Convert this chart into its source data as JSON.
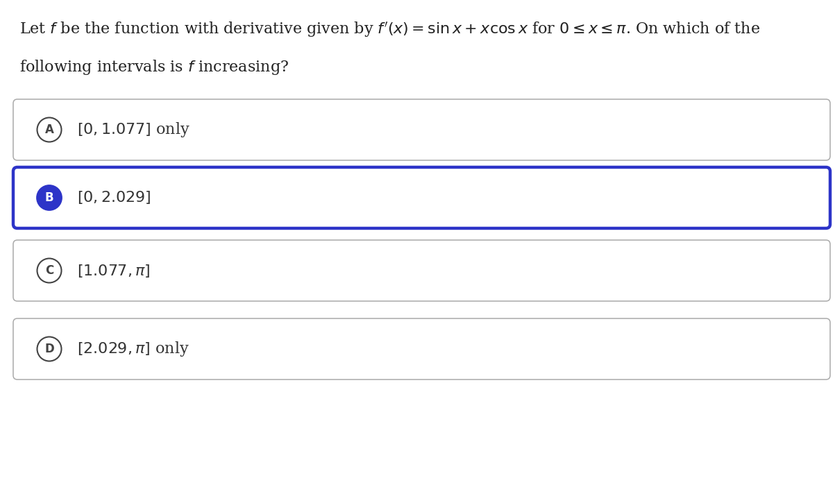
{
  "background_color": "#ffffff",
  "question_line1": "Let $f$ be the function with derivative given by $f'(x) = \\sin x + x\\cos x$ for $0 \\leq x \\leq \\pi$. On which of the",
  "question_line2": "following intervals is $f$ increasing?",
  "options": [
    {
      "letter": "A",
      "text": "$[0, 1.077]$ only",
      "selected": false
    },
    {
      "letter": "B",
      "text": "$[0, 2.029]$",
      "selected": true
    },
    {
      "letter": "C",
      "text": "$[1.077, \\pi]$",
      "selected": false
    },
    {
      "letter": "D",
      "text": "$[2.029, \\pi]$ only",
      "selected": false
    }
  ],
  "selected_color": "#2d34c8",
  "unselected_circle_color": "#444444",
  "selected_circle_fill": "#2d34c8",
  "unselected_circle_fill": "#ffffff",
  "selected_text_color": "#333333",
  "unselected_text_color": "#333333",
  "box_border_unselected": "#aaaaaa",
  "box_border_selected": "#2d34c8",
  "question_fontsize": 16,
  "option_fontsize": 16,
  "letter_fontsize": 12
}
